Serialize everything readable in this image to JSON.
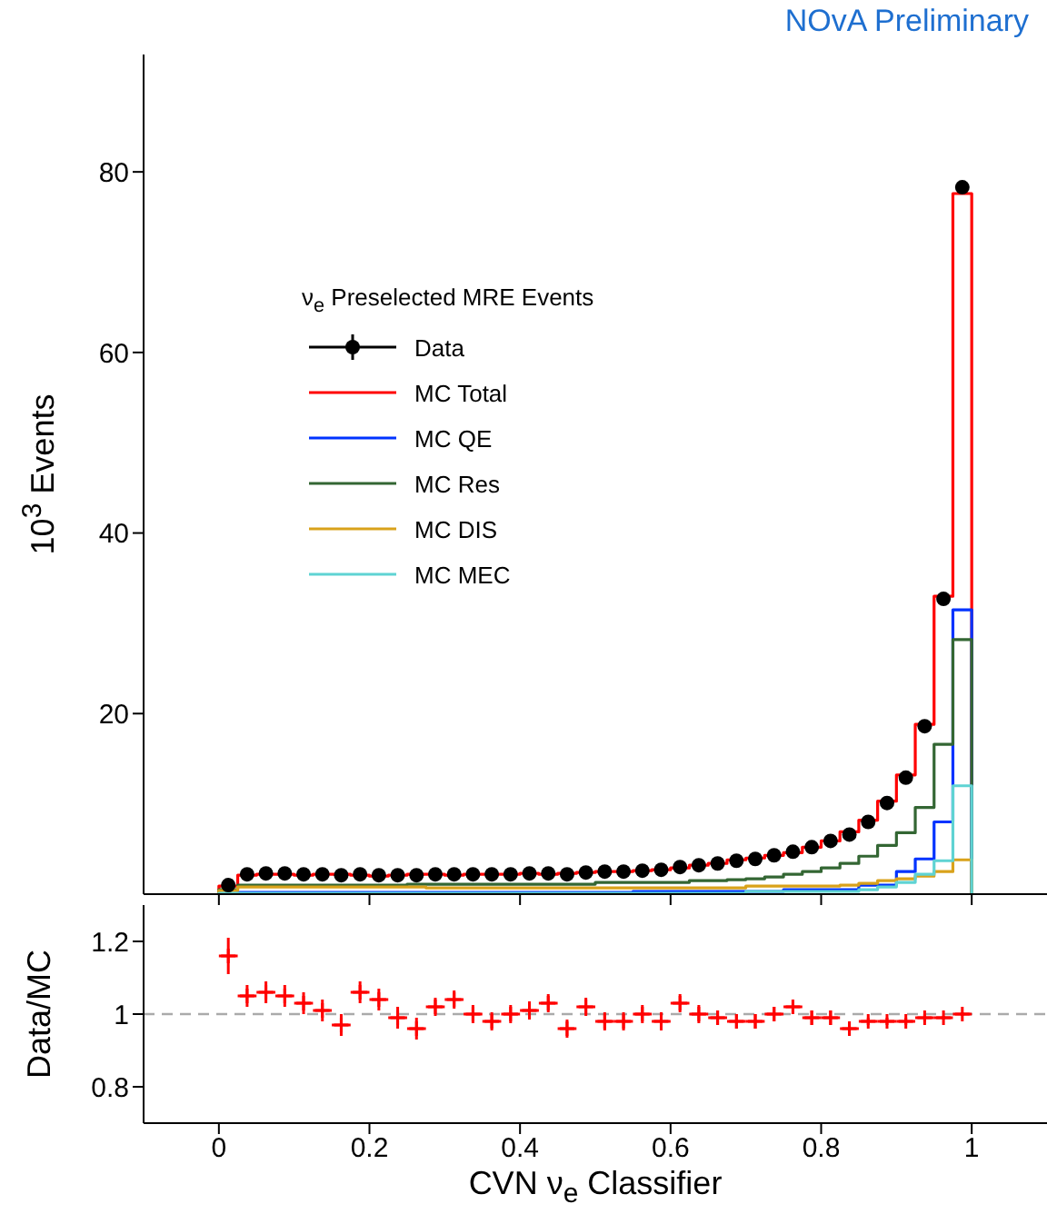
{
  "chart_data": [
    {
      "type": "histogram",
      "ylabel": "10$^{3}$ Events",
      "legend_title": "ν$_{e}$ Preselected MRE Events",
      "annotations": [
        "NOvA Preliminary"
      ],
      "legend": "top left",
      "tick_labels": "y",
      "bins": [
        0,
        0.025,
        0.05,
        0.075,
        0.1,
        0.125,
        0.15,
        0.175,
        0.2,
        0.225,
        0.25,
        0.275,
        0.3,
        0.325,
        0.35,
        0.375,
        0.4,
        0.425,
        0.45,
        0.475,
        0.5,
        0.525,
        0.55,
        0.575,
        0.6,
        0.625,
        0.65,
        0.675,
        0.7,
        0.725,
        0.75,
        0.775,
        0.8,
        0.825,
        0.85,
        0.875,
        0.9,
        0.925,
        0.95,
        0.975,
        1
      ],
      "xlim": [
        -0.1,
        1.1
      ],
      "xticks": [
        0,
        0.2,
        0.4,
        0.6,
        0.8,
        1
      ],
      "ylim": [
        0,
        93
      ],
      "yticks": [
        20,
        40,
        60,
        80
      ],
      "series": [
        {
          "name": "Data",
          "type": "scatter",
          "marker": "circle",
          "color": "#000000",
          "x": [
            0.0125,
            0.0375,
            0.0625,
            0.0875,
            0.1125,
            0.1375,
            0.1625,
            0.1875,
            0.2125,
            0.2375,
            0.2625,
            0.2875,
            0.3125,
            0.3375,
            0.3625,
            0.3875,
            0.4125,
            0.4375,
            0.4625,
            0.4875,
            0.5125,
            0.5375,
            0.5625,
            0.5875,
            0.6125,
            0.6375,
            0.6625,
            0.6875,
            0.7125,
            0.7375,
            0.7625,
            0.7875,
            0.8125,
            0.8375,
            0.8625,
            0.8875,
            0.9125,
            0.9375,
            0.9625,
            0.9875
          ],
          "values": [
            1.0,
            2.2,
            2.3,
            2.3,
            2.2,
            2.2,
            2.1,
            2.2,
            2.1,
            2.1,
            2.1,
            2.2,
            2.2,
            2.2,
            2.2,
            2.2,
            2.3,
            2.3,
            2.2,
            2.4,
            2.5,
            2.5,
            2.6,
            2.7,
            3.0,
            3.2,
            3.4,
            3.7,
            3.9,
            4.3,
            4.7,
            5.2,
            5.9,
            6.6,
            8.0,
            10.1,
            12.9,
            18.6,
            32.7,
            78.3
          ]
        },
        {
          "name": "MC Total",
          "color": "#ff0000",
          "values": [
            0.9,
            2.1,
            2.2,
            2.2,
            2.1,
            2.2,
            2.2,
            2.1,
            2.0,
            2.1,
            2.2,
            2.2,
            2.1,
            2.2,
            2.2,
            2.2,
            2.3,
            2.2,
            2.3,
            2.4,
            2.5,
            2.5,
            2.6,
            2.7,
            2.9,
            3.2,
            3.4,
            3.8,
            4.0,
            4.3,
            4.6,
            5.2,
            5.9,
            6.9,
            8.2,
            10.3,
            13.2,
            18.8,
            33.0,
            77.6
          ]
        },
        {
          "name": "MC QE",
          "color": "#0033ff",
          "values": [
            0.1,
            0.2,
            0.2,
            0.2,
            0.2,
            0.2,
            0.2,
            0.2,
            0.2,
            0.2,
            0.2,
            0.2,
            0.2,
            0.2,
            0.2,
            0.2,
            0.2,
            0.2,
            0.2,
            0.2,
            0.2,
            0.2,
            0.3,
            0.3,
            0.3,
            0.3,
            0.3,
            0.3,
            0.3,
            0.3,
            0.5,
            0.5,
            0.5,
            0.5,
            1.0,
            1.0,
            2.5,
            3.9,
            8.0,
            31.5
          ]
        },
        {
          "name": "MC Res",
          "color": "#336633",
          "values": [
            0.5,
            1.0,
            1.0,
            1.0,
            1.0,
            1.0,
            1.0,
            1.0,
            1.0,
            1.0,
            1.1,
            1.1,
            1.1,
            1.1,
            1.1,
            1.1,
            1.1,
            1.1,
            1.1,
            1.1,
            1.3,
            1.3,
            1.3,
            1.3,
            1.3,
            1.5,
            1.5,
            1.6,
            1.7,
            1.9,
            2.2,
            2.5,
            2.9,
            3.4,
            4.2,
            5.4,
            6.8,
            9.6,
            16.6,
            28.2
          ]
        },
        {
          "name": "MC DIS",
          "color": "#d9a21b",
          "values": [
            0.4,
            0.8,
            0.8,
            0.8,
            0.8,
            0.8,
            0.8,
            0.8,
            0.8,
            0.8,
            0.8,
            0.7,
            0.7,
            0.7,
            0.7,
            0.7,
            0.7,
            0.7,
            0.7,
            0.7,
            0.7,
            0.7,
            0.7,
            0.7,
            0.7,
            0.7,
            0.7,
            0.7,
            0.9,
            0.9,
            0.9,
            0.9,
            0.9,
            1.0,
            1.2,
            1.5,
            1.7,
            2.0,
            2.5,
            3.8
          ]
        },
        {
          "name": "MC MEC",
          "color": "#5fd3d3",
          "values": [
            0.1,
            0.1,
            0.1,
            0.1,
            0.1,
            0.1,
            0.1,
            0.1,
            0.1,
            0.1,
            0.1,
            0.1,
            0.1,
            0.1,
            0.1,
            0.1,
            0.1,
            0.1,
            0.1,
            0.1,
            0.1,
            0.1,
            0.1,
            0.1,
            0.1,
            0.1,
            0.1,
            0.1,
            0.3,
            0.3,
            0.3,
            0.3,
            0.3,
            0.3,
            0.5,
            0.8,
            1.3,
            2.2,
            3.7,
            12.0
          ]
        }
      ]
    },
    {
      "type": "scatter",
      "ylabel": "Data/MC",
      "xlabel": "CVN ν$_{e}$ Classifier",
      "x": [
        0.0125,
        0.0375,
        0.0625,
        0.0875,
        0.1125,
        0.1375,
        0.1625,
        0.1875,
        0.2125,
        0.2375,
        0.2625,
        0.2875,
        0.3125,
        0.3375,
        0.3625,
        0.3875,
        0.4125,
        0.4375,
        0.4625,
        0.4875,
        0.5125,
        0.5375,
        0.5625,
        0.5875,
        0.6125,
        0.6375,
        0.6625,
        0.6875,
        0.7125,
        0.7375,
        0.7625,
        0.7875,
        0.8125,
        0.8375,
        0.8625,
        0.8875,
        0.9125,
        0.9375,
        0.9625,
        0.9875
      ],
      "xlim": [
        -0.1,
        1.1
      ],
      "xticks": [
        0,
        0.2,
        0.4,
        0.6,
        0.8,
        1
      ],
      "ylim": [
        0.7,
        1.3
      ],
      "yticks": [
        0.8,
        1,
        1.2
      ],
      "ref_lines": [
        {
          "axis": "y",
          "value": 1,
          "color": "#aaaaaa",
          "line_style": "dashed"
        }
      ],
      "series": [
        {
          "marker": "cross",
          "color": "#ff0000",
          "values": [
            1.16,
            1.05,
            1.06,
            1.05,
            1.03,
            1.01,
            0.97,
            1.06,
            1.04,
            0.99,
            0.96,
            1.02,
            1.04,
            1.0,
            0.98,
            1.0,
            1.01,
            1.03,
            0.96,
            1.02,
            0.98,
            0.98,
            1.0,
            0.98,
            1.03,
            1.0,
            0.99,
            0.98,
            0.98,
            1.0,
            1.02,
            0.99,
            0.99,
            0.96,
            0.98,
            0.98,
            0.98,
            0.99,
            0.99,
            1.0
          ],
          "errors": [
            0.05,
            0.03,
            0.03,
            0.03,
            0.03,
            0.03,
            0.03,
            0.03,
            0.03,
            0.03,
            0.03,
            0.025,
            0.025,
            0.025,
            0.025,
            0.025,
            0.025,
            0.025,
            0.025,
            0.025,
            0.025,
            0.025,
            0.025,
            0.025,
            0.025,
            0.025,
            0.02,
            0.02,
            0.02,
            0.02,
            0.02,
            0.02,
            0.02,
            0.02,
            0.01,
            0.01,
            0.01,
            0.01,
            0.005,
            0.005
          ],
          "xerrors": [
            0.0125,
            0.0125,
            0.0125,
            0.0125,
            0.0125,
            0.0125,
            0.0125,
            0.0125,
            0.0125,
            0.0125,
            0.0125,
            0.0125,
            0.0125,
            0.0125,
            0.0125,
            0.0125,
            0.0125,
            0.0125,
            0.0125,
            0.0125,
            0.0125,
            0.0125,
            0.0125,
            0.0125,
            0.0125,
            0.0125,
            0.0125,
            0.0125,
            0.0125,
            0.0125,
            0.0125,
            0.0125,
            0.0125,
            0.0125,
            0.0125,
            0.0125,
            0.0125,
            0.0125,
            0.0125,
            0.0125
          ]
        }
      ]
    }
  ]
}
